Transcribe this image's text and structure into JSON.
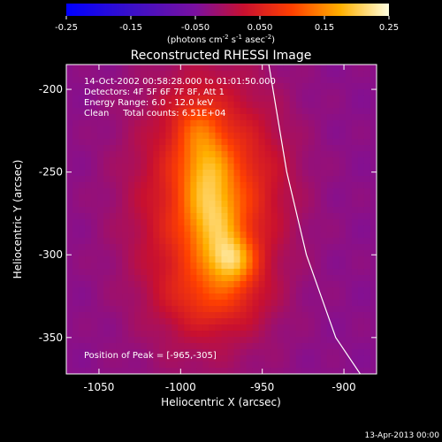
{
  "chart_data": {
    "type": "heatmap",
    "title": "Reconstructed RHESSI Image",
    "xlabel": "Heliocentric X (arcsec)",
    "ylabel": "Heliocentric Y (arcsec)",
    "xlim": [
      -1070,
      -880
    ],
    "ylim": [
      -372,
      -185
    ],
    "xticks": [
      "-1050",
      "-1000",
      "-950",
      "-900"
    ],
    "yticks": [
      "-200",
      "-250",
      "-300",
      "-350"
    ],
    "colorbar": {
      "ticks": [
        "-0.25",
        "-0.15",
        "-0.050",
        "0.050",
        "0.15",
        "0.25"
      ],
      "range": [
        -0.25,
        0.25
      ],
      "label": "(photons cm",
      "label_sup1": "-2",
      "label_mid1": " s",
      "label_sup2": "-1",
      "label_mid2": " asec",
      "label_sup3": "-2",
      "label_end": ")"
    },
    "info_lines": [
      "14-Oct-2002 00:58:28.000 to 01:01:50.000",
      "Detectors: 4F 5F 6F 7F 8F, Att 1",
      "Energy Range: 6.0 - 12.0 keV",
      "Clean     Total counts: 6.51E+04"
    ],
    "peak_text": "Position of Peak = [-965,-305]",
    "peak_position": [
      -965,
      -305
    ],
    "footer": "13-Apr-2013 00:00",
    "limb_curve": [
      [
        -946,
        -185
      ],
      [
        -935,
        -250
      ],
      [
        -923,
        -300
      ],
      [
        -905,
        -350
      ],
      [
        -890,
        -372
      ]
    ],
    "sources": [
      {
        "x": -968,
        "y": -303,
        "sx": 10,
        "sy": 10,
        "amp": 0.12
      },
      {
        "x": -980,
        "y": -280,
        "sx": 12,
        "sy": 18,
        "amp": 0.1
      },
      {
        "x": -985,
        "y": -245,
        "sx": 11,
        "sy": 16,
        "amp": 0.08
      },
      {
        "x": -990,
        "y": -220,
        "sx": 10,
        "sy": 12,
        "amp": 0.05
      },
      {
        "x": -978,
        "y": -325,
        "sx": 20,
        "sy": 14,
        "amp": 0.06
      },
      {
        "x": -985,
        "y": -270,
        "sx": 30,
        "sy": 55,
        "amp": 0.12
      },
      {
        "x": -960,
        "y": -255,
        "sx": 22,
        "sy": 30,
        "amp": 0.03
      }
    ]
  }
}
